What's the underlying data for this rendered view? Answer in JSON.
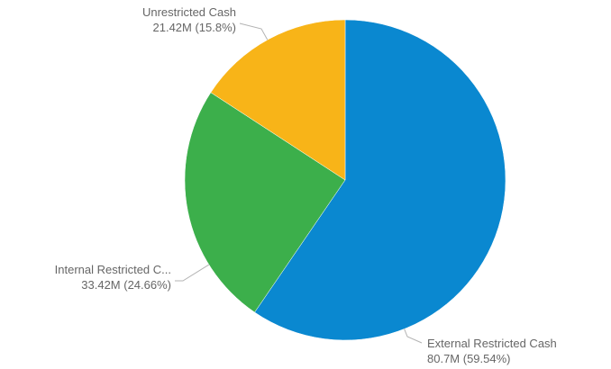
{
  "chart_data": {
    "type": "pie",
    "title": "",
    "slices": [
      {
        "name": "External Restricted Cash",
        "value": 80.7,
        "value_label": "80.7M (59.54%)",
        "percent": 59.54,
        "color": "#0a88d0"
      },
      {
        "name": "Internal Restricted C...",
        "value": 33.42,
        "value_label": "33.42M (24.66%)",
        "percent": 24.66,
        "color": "#3caf4b"
      },
      {
        "name": "Unrestricted Cash",
        "value": 21.42,
        "value_label": "21.42M (15.8%)",
        "percent": 15.8,
        "color": "#f8b418"
      }
    ],
    "legend": "none",
    "data_labels": "outside"
  }
}
